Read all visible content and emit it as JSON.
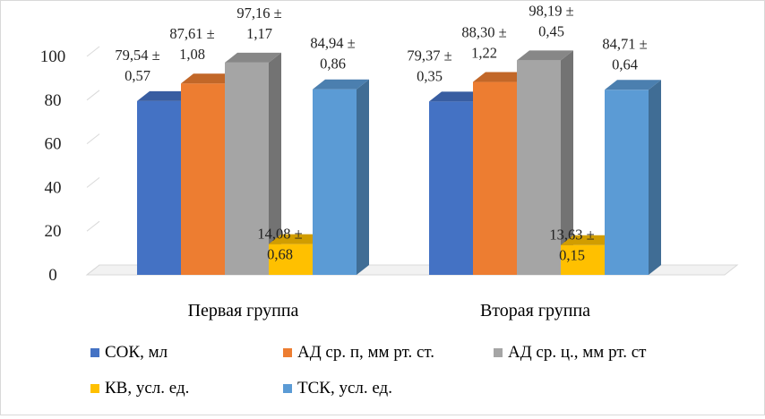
{
  "chart_data": {
    "type": "bar",
    "style": "3d-clustered-column",
    "categories": [
      "Первая группа",
      "Вторая группа"
    ],
    "ylim": [
      0,
      100
    ],
    "yticks": [
      0,
      20,
      40,
      60,
      80,
      100
    ],
    "grid": false,
    "legend_position": "bottom",
    "series": [
      {
        "name": "СОК, мл",
        "color": "#4472c4",
        "values": [
          79.54,
          79.37
        ],
        "labels": [
          "79,54 ±\n0,57",
          "79,37 ±\n0,35"
        ]
      },
      {
        "name": "АД ср. п, мм рт. ст.",
        "color": "#ed7d31",
        "values": [
          87.61,
          88.3
        ],
        "labels": [
          "87,61 ±\n1,08",
          "88,30 ±\n1,22"
        ]
      },
      {
        "name": "АД ср. ц., мм рт. ст",
        "color": "#a5a5a5",
        "values": [
          97.16,
          98.19
        ],
        "labels": [
          "97,16 ±\n1,17",
          "98,19 ±\n0,45"
        ]
      },
      {
        "name": "КВ, усл. ед.",
        "color": "#ffc000",
        "values": [
          14.08,
          13.63
        ],
        "labels": [
          "14,08 ±\n0,68",
          "13,63 ±\n0,15"
        ]
      },
      {
        "name": "ТСК, усл. ед.",
        "color": "#5b9bd5",
        "values": [
          84.94,
          84.71
        ],
        "labels": [
          "84,94 ±\n0,86",
          "84,71 ±\n0,64"
        ]
      }
    ]
  }
}
